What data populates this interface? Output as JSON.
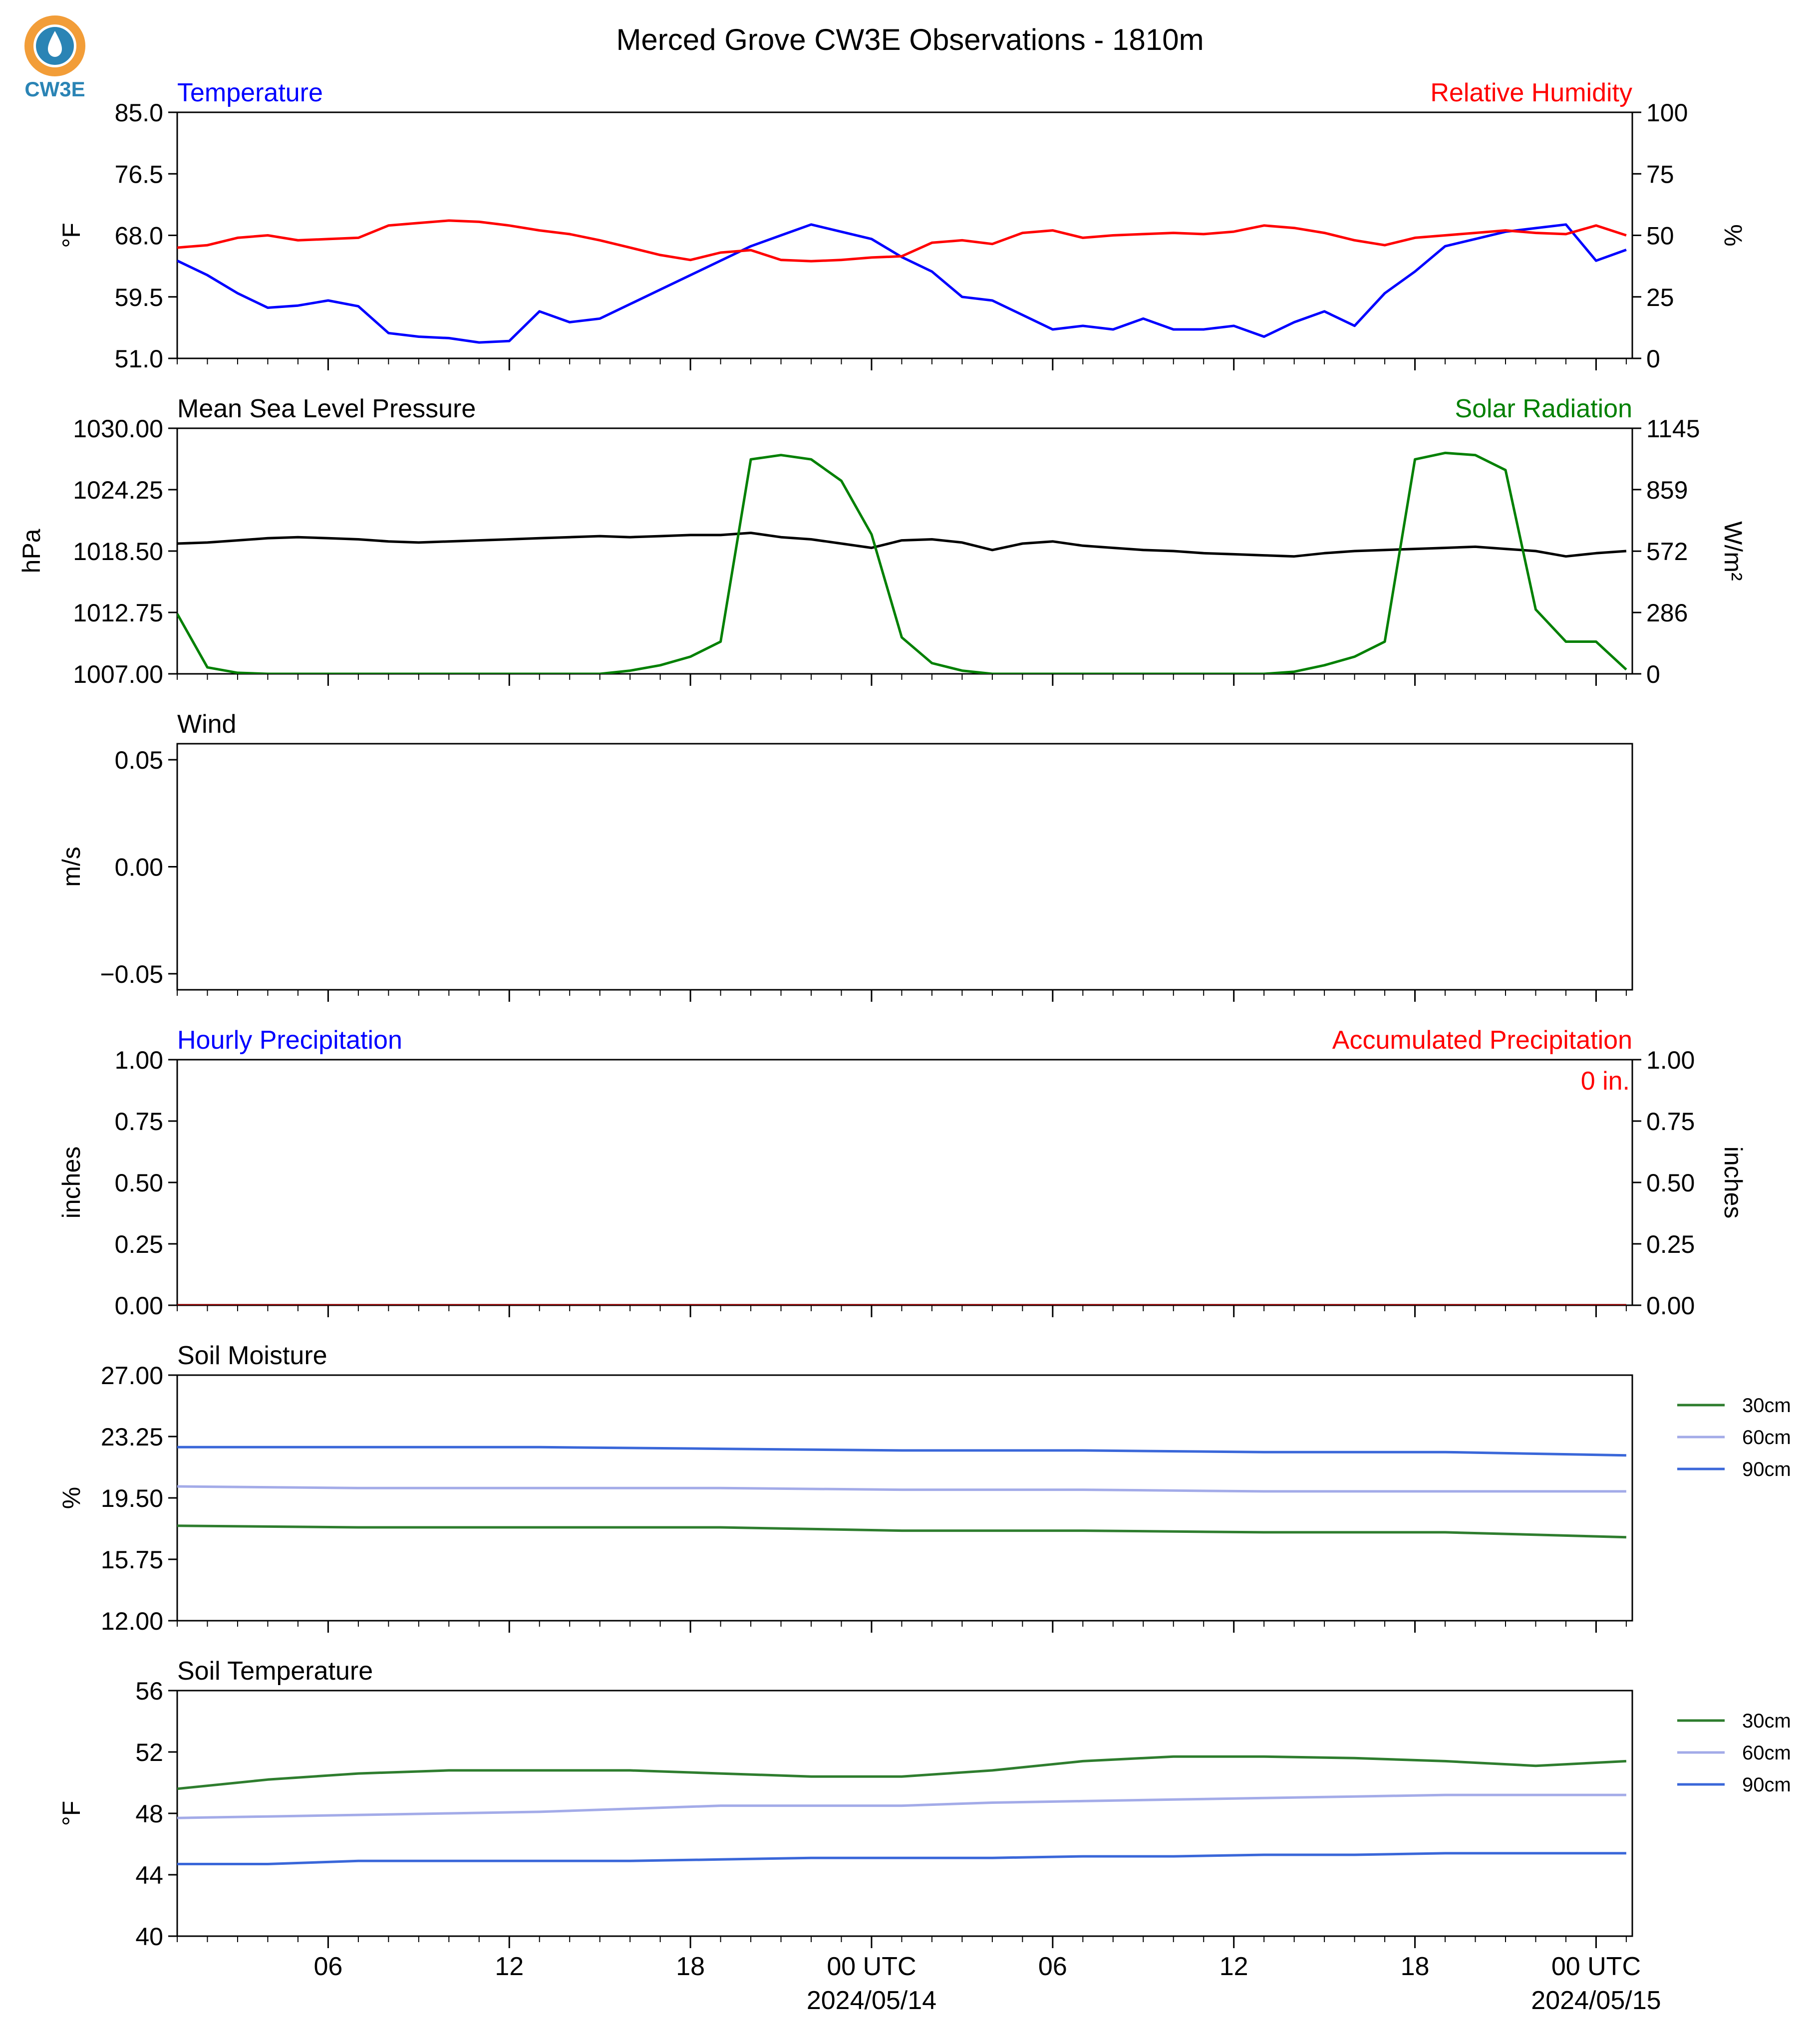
{
  "figure": {
    "title": "Merced Grove CW3E Observations - 1810m",
    "logo_text": "CW3E",
    "x_ticks": [
      "06",
      "12",
      "18",
      "00 UTC",
      "06",
      "12",
      "18",
      "00 UTC"
    ],
    "x_date_labels": [
      "2024/05/14",
      "2024/05/15"
    ]
  },
  "colors": {
    "temperature": "#0000ff",
    "humidity": "#ff0000",
    "pressure": "#000000",
    "solar": "#008000",
    "soil_30cm": "#2e7d2e",
    "soil_60cm": "#a3abe8",
    "soil_90cm": "#3a67d9",
    "logo_orange": "#f29d38",
    "logo_blue": "#2a84b5"
  },
  "chart_data": [
    {
      "id": "temp_rh",
      "type": "line",
      "title_left": "Temperature",
      "title_right": "Relative Humidity",
      "ylabel_left": "°F",
      "ylabel_right": "%",
      "ylim_left": [
        51.0,
        85.0
      ],
      "ylim_right": [
        0,
        100
      ],
      "yticks_left": [
        "85.0",
        "76.5",
        "68.0",
        "59.5",
        "51.0"
      ],
      "yticks_right": [
        "100",
        "75",
        "50",
        "25",
        "0"
      ],
      "x_hours": [
        0,
        1,
        2,
        3,
        4,
        5,
        6,
        7,
        8,
        9,
        10,
        11,
        12,
        13,
        14,
        15,
        16,
        17,
        18,
        19,
        20,
        21,
        22,
        23,
        24,
        25,
        26,
        27,
        28,
        29,
        30,
        31,
        32,
        33,
        34,
        35,
        36,
        37,
        38,
        39,
        40,
        41,
        42,
        43,
        44,
        45,
        46,
        47,
        48
      ],
      "series": [
        {
          "name": "Temperature",
          "axis": "left",
          "values": [
            64.5,
            62.5,
            60,
            58,
            58.3,
            59,
            58.2,
            54.5,
            54,
            53.8,
            53.2,
            53.4,
            57.5,
            56,
            56.5,
            58.5,
            60.5,
            62.5,
            64.5,
            66.5,
            68,
            69.5,
            68.5,
            67.5,
            65,
            63,
            59.5,
            59,
            57,
            55,
            55.5,
            55,
            56.5,
            55,
            55,
            55.5,
            54,
            56,
            57.5,
            55.5,
            60,
            63,
            66.5,
            67.5,
            68.5,
            69,
            69.5,
            64.5,
            66
          ]
        },
        {
          "name": "Relative Humidity",
          "axis": "right",
          "values": [
            45,
            46,
            49,
            50,
            48,
            48.5,
            49,
            54,
            55,
            56,
            55.5,
            54,
            52,
            50.5,
            48,
            45,
            42,
            40,
            43,
            44,
            40,
            39.5,
            40,
            41,
            41.5,
            47,
            48,
            46.5,
            51,
            52,
            49,
            50,
            50.5,
            51,
            50.5,
            51.5,
            54,
            53,
            51,
            48,
            46,
            49,
            50,
            51,
            52,
            51,
            50.5,
            54,
            50
          ]
        }
      ]
    },
    {
      "id": "pressure_solar",
      "type": "line",
      "title_left": "Mean Sea Level Pressure",
      "title_right": "Solar Radiation",
      "ylabel_left": "hPa",
      "ylabel_right": "W/m²",
      "ylim_left": [
        1007.0,
        1030.0
      ],
      "ylim_right": [
        0,
        1145
      ],
      "yticks_left": [
        "1030.00",
        "1024.25",
        "1018.50",
        "1012.75",
        "1007.00"
      ],
      "yticks_right": [
        "1145",
        "859",
        "572",
        "286",
        "0"
      ],
      "x_hours": [
        0,
        1,
        2,
        3,
        4,
        5,
        6,
        7,
        8,
        9,
        10,
        11,
        12,
        13,
        14,
        15,
        16,
        17,
        18,
        19,
        20,
        21,
        22,
        23,
        24,
        25,
        26,
        27,
        28,
        29,
        30,
        31,
        32,
        33,
        34,
        35,
        36,
        37,
        38,
        39,
        40,
        41,
        42,
        43,
        44,
        45,
        46,
        47,
        48
      ],
      "series": [
        {
          "name": "Mean Sea Level Pressure",
          "axis": "left",
          "values": [
            1019.2,
            1019.3,
            1019.5,
            1019.7,
            1019.8,
            1019.7,
            1019.6,
            1019.4,
            1019.3,
            1019.4,
            1019.5,
            1019.6,
            1019.7,
            1019.8,
            1019.9,
            1019.8,
            1019.9,
            1020.0,
            1020.0,
            1020.2,
            1019.8,
            1019.6,
            1019.2,
            1018.8,
            1019.5,
            1019.6,
            1019.3,
            1018.6,
            1019.2,
            1019.4,
            1019.0,
            1018.8,
            1018.6,
            1018.5,
            1018.3,
            1018.2,
            1018.1,
            1018.0,
            1018.3,
            1018.5,
            1018.6,
            1018.7,
            1018.8,
            1018.9,
            1018.7,
            1018.5,
            1018.0,
            1018.3,
            1018.5
          ]
        },
        {
          "name": "Solar Radiation",
          "axis": "right",
          "values": [
            280,
            30,
            5,
            0,
            0,
            0,
            0,
            0,
            0,
            0,
            0,
            0,
            0,
            0,
            0,
            15,
            40,
            80,
            150,
            1000,
            1020,
            1000,
            900,
            650,
            170,
            50,
            15,
            0,
            0,
            0,
            0,
            0,
            0,
            0,
            0,
            0,
            0,
            10,
            40,
            80,
            150,
            1000,
            1030,
            1020,
            950,
            300,
            150,
            150,
            20
          ]
        }
      ]
    },
    {
      "id": "wind",
      "type": "line",
      "title_left": "Wind",
      "ylabel_left": "m/s",
      "ylim_left": [
        -0.0575,
        0.0575
      ],
      "yticks_left": [
        "0.05",
        "0.00",
        "−0.05"
      ],
      "series": []
    },
    {
      "id": "precip",
      "type": "line",
      "title_left": "Hourly Precipitation",
      "title_right": "Accumulated Precipitation",
      "ylabel_left": "inches",
      "ylabel_right": "inches",
      "ylim_left": [
        0.0,
        1.0
      ],
      "ylim_right": [
        0.0,
        1.0
      ],
      "yticks_left": [
        "1.00",
        "0.75",
        "0.50",
        "0.25",
        "0.00"
      ],
      "yticks_right": [
        "1.00",
        "0.75",
        "0.50",
        "0.25",
        "0.00"
      ],
      "annotation": "0 in.",
      "x_hours": [
        0,
        48
      ],
      "series": [
        {
          "name": "Hourly Precipitation",
          "axis": "left",
          "values": [
            0,
            0
          ]
        },
        {
          "name": "Accumulated Precipitation",
          "axis": "right",
          "values": [
            0,
            0
          ]
        }
      ]
    },
    {
      "id": "soil_moisture",
      "type": "line",
      "title_left": "Soil Moisture",
      "ylabel_left": "%",
      "ylim_left": [
        12.0,
        27.0
      ],
      "yticks_left": [
        "27.00",
        "23.25",
        "19.50",
        "15.75",
        "12.00"
      ],
      "legend": [
        "30cm",
        "60cm",
        "90cm"
      ],
      "x_hours": [
        0,
        6,
        12,
        18,
        24,
        30,
        36,
        42,
        48
      ],
      "series": [
        {
          "name": "30cm",
          "values": [
            17.8,
            17.7,
            17.7,
            17.7,
            17.5,
            17.5,
            17.4,
            17.4,
            17.1
          ]
        },
        {
          "name": "60cm",
          "values": [
            20.2,
            20.1,
            20.1,
            20.1,
            20.0,
            20.0,
            19.9,
            19.9,
            19.9
          ]
        },
        {
          "name": "90cm",
          "values": [
            22.6,
            22.6,
            22.6,
            22.5,
            22.4,
            22.4,
            22.3,
            22.3,
            22.1
          ]
        }
      ]
    },
    {
      "id": "soil_temperature",
      "type": "line",
      "title_left": "Soil Temperature",
      "ylabel_left": "°F",
      "ylim_left": [
        40,
        56
      ],
      "yticks_left": [
        "56",
        "52",
        "48",
        "44",
        "40"
      ],
      "legend": [
        "30cm",
        "60cm",
        "90cm"
      ],
      "x_hours": [
        0,
        3,
        6,
        9,
        12,
        15,
        18,
        21,
        24,
        27,
        30,
        33,
        36,
        39,
        42,
        45,
        48
      ],
      "series": [
        {
          "name": "30cm",
          "values": [
            49.6,
            50.2,
            50.6,
            50.8,
            50.8,
            50.8,
            50.6,
            50.4,
            50.4,
            50.8,
            51.4,
            51.7,
            51.7,
            51.6,
            51.4,
            51.1,
            51.4
          ]
        },
        {
          "name": "60cm",
          "values": [
            47.7,
            47.8,
            47.9,
            48.0,
            48.1,
            48.3,
            48.5,
            48.5,
            48.5,
            48.7,
            48.8,
            48.9,
            49.0,
            49.1,
            49.2,
            49.2,
            49.2
          ]
        },
        {
          "name": "90cm",
          "values": [
            44.7,
            44.7,
            44.9,
            44.9,
            44.9,
            44.9,
            45.0,
            45.1,
            45.1,
            45.1,
            45.2,
            45.2,
            45.3,
            45.3,
            45.4,
            45.4,
            45.4
          ]
        }
      ]
    }
  ]
}
